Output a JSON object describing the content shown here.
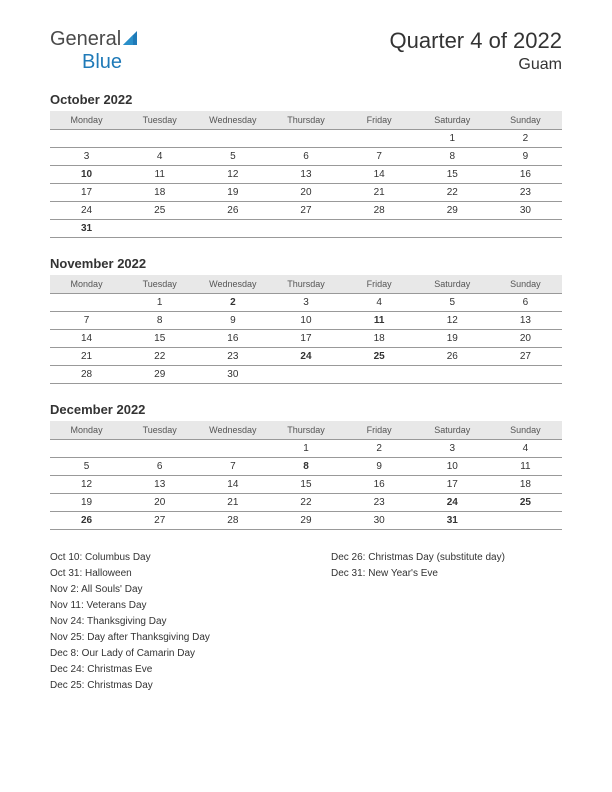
{
  "logo": {
    "general": "General",
    "blue": "Blue"
  },
  "header": {
    "title": "Quarter 4 of 2022",
    "location": "Guam"
  },
  "weekdays": [
    "Monday",
    "Tuesday",
    "Wednesday",
    "Thursday",
    "Friday",
    "Saturday",
    "Sunday"
  ],
  "months": [
    {
      "title": "October 2022",
      "weeks": [
        [
          null,
          null,
          null,
          null,
          null,
          {
            "d": "1"
          },
          {
            "d": "2"
          }
        ],
        [
          {
            "d": "3"
          },
          {
            "d": "4"
          },
          {
            "d": "5"
          },
          {
            "d": "6"
          },
          {
            "d": "7"
          },
          {
            "d": "8"
          },
          {
            "d": "9"
          }
        ],
        [
          {
            "d": "10",
            "h": true
          },
          {
            "d": "11"
          },
          {
            "d": "12"
          },
          {
            "d": "13"
          },
          {
            "d": "14"
          },
          {
            "d": "15"
          },
          {
            "d": "16"
          }
        ],
        [
          {
            "d": "17"
          },
          {
            "d": "18"
          },
          {
            "d": "19"
          },
          {
            "d": "20"
          },
          {
            "d": "21"
          },
          {
            "d": "22"
          },
          {
            "d": "23"
          }
        ],
        [
          {
            "d": "24"
          },
          {
            "d": "25"
          },
          {
            "d": "26"
          },
          {
            "d": "27"
          },
          {
            "d": "28"
          },
          {
            "d": "29"
          },
          {
            "d": "30"
          }
        ],
        [
          {
            "d": "31",
            "h": true
          },
          null,
          null,
          null,
          null,
          null,
          null
        ]
      ]
    },
    {
      "title": "November 2022",
      "weeks": [
        [
          null,
          {
            "d": "1"
          },
          {
            "d": "2",
            "h": true
          },
          {
            "d": "3"
          },
          {
            "d": "4"
          },
          {
            "d": "5"
          },
          {
            "d": "6"
          }
        ],
        [
          {
            "d": "7"
          },
          {
            "d": "8"
          },
          {
            "d": "9"
          },
          {
            "d": "10"
          },
          {
            "d": "11",
            "h": true
          },
          {
            "d": "12"
          },
          {
            "d": "13"
          }
        ],
        [
          {
            "d": "14"
          },
          {
            "d": "15"
          },
          {
            "d": "16"
          },
          {
            "d": "17"
          },
          {
            "d": "18"
          },
          {
            "d": "19"
          },
          {
            "d": "20"
          }
        ],
        [
          {
            "d": "21"
          },
          {
            "d": "22"
          },
          {
            "d": "23"
          },
          {
            "d": "24",
            "h": true
          },
          {
            "d": "25",
            "h": true
          },
          {
            "d": "26"
          },
          {
            "d": "27"
          }
        ],
        [
          {
            "d": "28"
          },
          {
            "d": "29"
          },
          {
            "d": "30"
          },
          null,
          null,
          null,
          null
        ]
      ]
    },
    {
      "title": "December 2022",
      "weeks": [
        [
          null,
          null,
          null,
          {
            "d": "1"
          },
          {
            "d": "2"
          },
          {
            "d": "3"
          },
          {
            "d": "4"
          }
        ],
        [
          {
            "d": "5"
          },
          {
            "d": "6"
          },
          {
            "d": "7"
          },
          {
            "d": "8",
            "h": true
          },
          {
            "d": "9"
          },
          {
            "d": "10"
          },
          {
            "d": "11"
          }
        ],
        [
          {
            "d": "12"
          },
          {
            "d": "13"
          },
          {
            "d": "14"
          },
          {
            "d": "15"
          },
          {
            "d": "16"
          },
          {
            "d": "17"
          },
          {
            "d": "18"
          }
        ],
        [
          {
            "d": "19"
          },
          {
            "d": "20"
          },
          {
            "d": "21"
          },
          {
            "d": "22"
          },
          {
            "d": "23"
          },
          {
            "d": "24",
            "h": true
          },
          {
            "d": "25",
            "h": true
          }
        ],
        [
          {
            "d": "26",
            "h": true
          },
          {
            "d": "27"
          },
          {
            "d": "28"
          },
          {
            "d": "29"
          },
          {
            "d": "30"
          },
          {
            "d": "31",
            "h": true
          },
          null
        ]
      ]
    }
  ],
  "holidays_left": [
    "Oct 10: Columbus Day",
    "Oct 31: Halloween",
    "Nov 2: All Souls' Day",
    "Nov 11: Veterans Day",
    "Nov 24: Thanksgiving Day",
    "Nov 25: Day after Thanksgiving Day",
    "Dec 8: Our Lady of Camarin Day",
    "Dec 24: Christmas Eve",
    "Dec 25: Christmas Day"
  ],
  "holidays_right": [
    "Dec 26: Christmas Day (substitute day)",
    "Dec 31: New Year's Eve"
  ],
  "colors": {
    "holiday": "#cc0000",
    "header_bg": "#e8e8e8",
    "text": "#333333",
    "logo_blue": "#1f7ab8",
    "border": "#999999"
  }
}
